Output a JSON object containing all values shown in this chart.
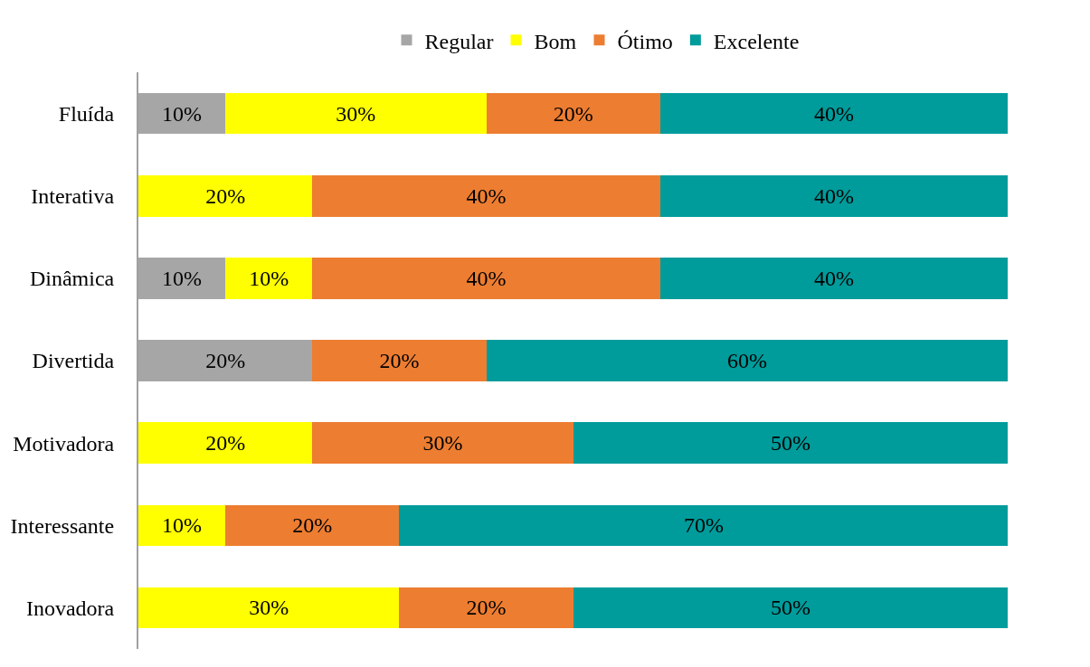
{
  "chart_data": {
    "type": "bar",
    "orientation": "horizontal",
    "stacked": true,
    "legend": "top",
    "categories": [
      "Fluída",
      "Interativa",
      "Dinâmica",
      "Divertida",
      "Motivadora",
      "Interessante",
      "Inovadora"
    ],
    "series": [
      {
        "name": "Regular",
        "color": "#a6a6a6",
        "values": [
          10,
          null,
          10,
          20,
          null,
          null,
          null
        ],
        "value_labels": [
          "10%",
          null,
          "10%",
          "20%",
          null,
          null,
          null
        ]
      },
      {
        "name": "Bom",
        "color": "#ffff00",
        "values": [
          30,
          20,
          10,
          null,
          20,
          10,
          30
        ],
        "value_labels": [
          "30%",
          "20%",
          "10%",
          null,
          "20%",
          "10%",
          "30%"
        ]
      },
      {
        "name": "Ótimo",
        "color": "#ed7d31",
        "values": [
          20,
          40,
          40,
          20,
          30,
          20,
          20
        ],
        "value_labels": [
          "20%",
          "40%",
          "40%",
          "20%",
          "30%",
          "20%",
          "20%"
        ]
      },
      {
        "name": "Excelente",
        "color": "#009b9b",
        "values": [
          40,
          40,
          40,
          60,
          50,
          70,
          50
        ],
        "value_labels": [
          "40%",
          "40%",
          "40%",
          "60%",
          "50%",
          "70%",
          "50%"
        ]
      }
    ]
  }
}
